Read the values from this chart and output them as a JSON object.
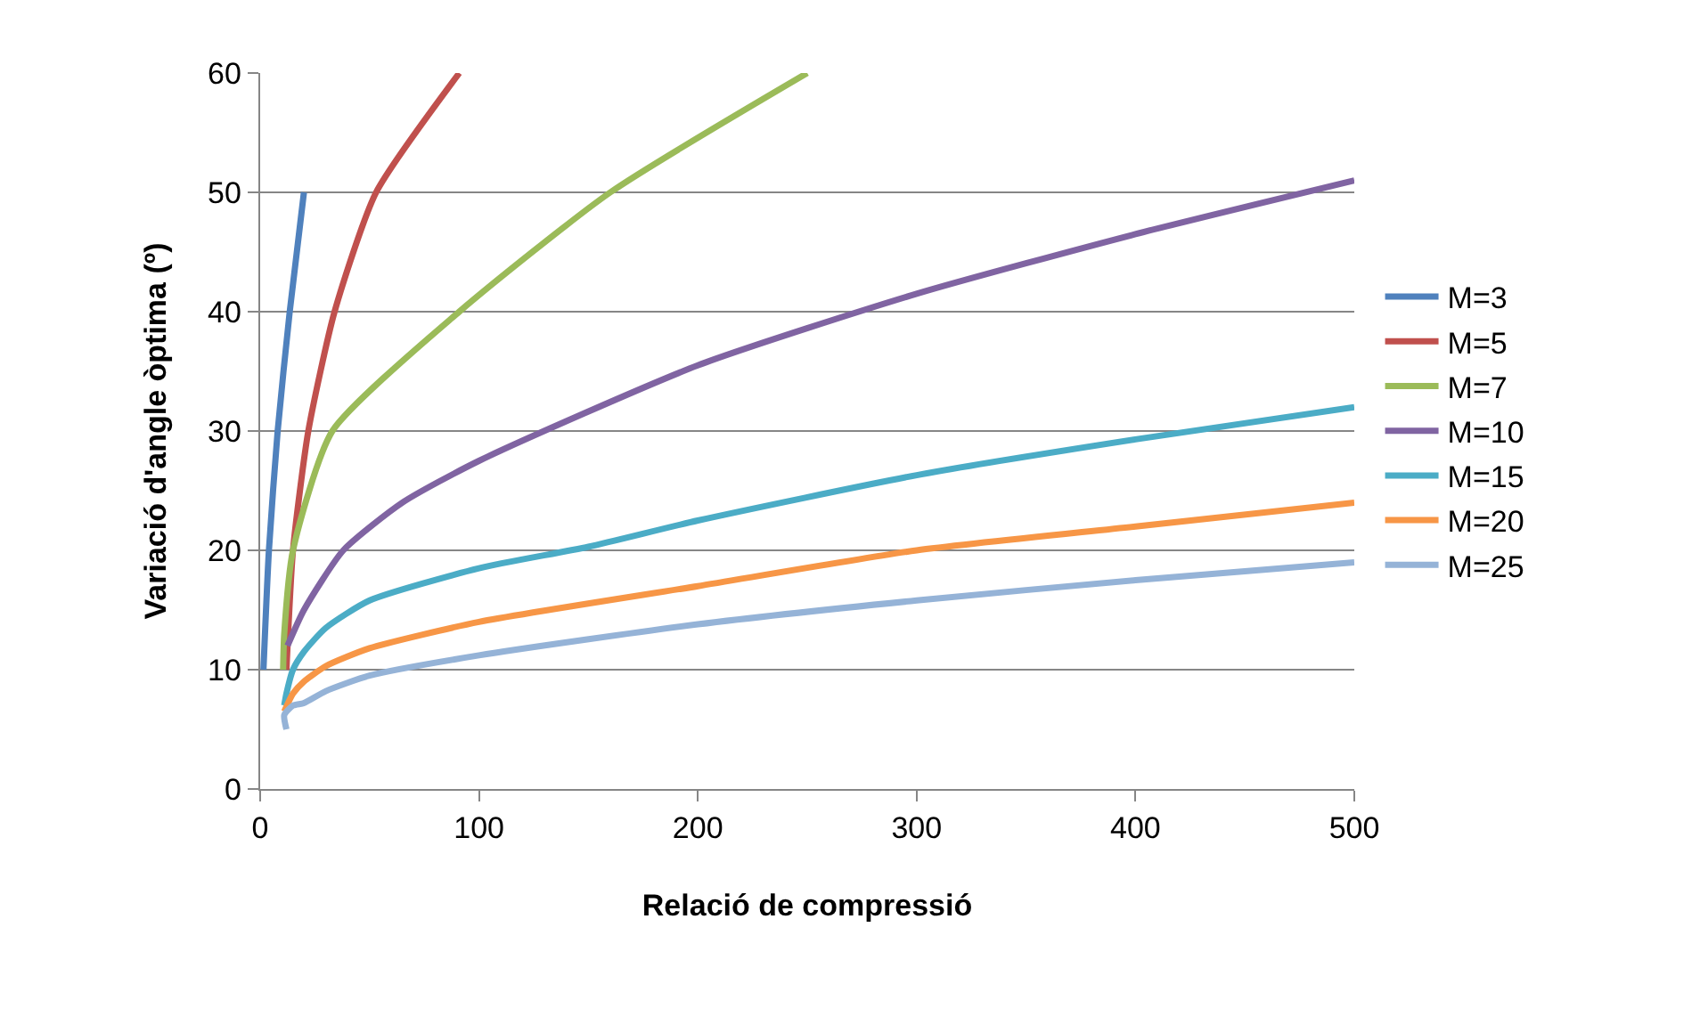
{
  "chart_data": {
    "type": "line",
    "xlabel": "Relació de compressió",
    "ylabel": "Variació d'angle òptima (º)",
    "xlim": [
      0,
      500
    ],
    "xticks": [
      0,
      100,
      200,
      300,
      400,
      500
    ],
    "ylim": [
      0,
      60
    ],
    "yticks": [
      0,
      10,
      20,
      30,
      40,
      50,
      60
    ],
    "grid": "y",
    "legend": "right",
    "marker": "none",
    "line_style": "solid",
    "series": [
      {
        "name": "M=3",
        "color": "#4f81bd",
        "x": [
          1.5,
          4,
          8,
          13.5,
          20
        ],
        "values": [
          10,
          20,
          30,
          40,
          50
        ]
      },
      {
        "name": "M=5",
        "color": "#c0504d",
        "x": [
          12,
          15,
          22,
          34,
          53,
          91
        ],
        "values": [
          10,
          20,
          30,
          40,
          50,
          60
        ]
      },
      {
        "name": "M=7",
        "color": "#9bbb59",
        "x": [
          10.5,
          11,
          15,
          33,
          91,
          160,
          250
        ],
        "values": [
          10,
          13,
          20,
          30,
          40,
          50,
          60
        ]
      },
      {
        "name": "M=10",
        "color": "#8064a2",
        "x": [
          12.5,
          20,
          38,
          65,
          100,
          200,
          300,
          400,
          500
        ],
        "values": [
          12,
          15,
          20,
          24,
          27.5,
          35.5,
          41.5,
          46.5,
          51
        ]
      },
      {
        "name": "M=15",
        "color": "#4bacc6",
        "x": [
          11,
          12,
          15,
          20,
          30,
          50,
          100,
          150,
          200,
          300,
          400,
          500
        ],
        "values": [
          7,
          8,
          10,
          11.5,
          13.5,
          15.8,
          18.5,
          20.3,
          22.5,
          26.3,
          29.3,
          32
        ]
      },
      {
        "name": "M=20",
        "color": "#f79646",
        "x": [
          11,
          15,
          20,
          30,
          50,
          100,
          200,
          300,
          400,
          500
        ],
        "values": [
          6.5,
          8,
          9,
          10.3,
          11.8,
          14,
          17,
          20,
          22,
          24
        ]
      },
      {
        "name": "M=25",
        "color": "#95b3d7",
        "x": [
          12,
          11,
          15,
          20,
          30,
          50,
          100,
          200,
          300,
          400,
          500
        ],
        "values": [
          5,
          6.2,
          7,
          7.2,
          8.2,
          9.5,
          11.2,
          13.8,
          15.8,
          17.5,
          19
        ]
      }
    ]
  }
}
